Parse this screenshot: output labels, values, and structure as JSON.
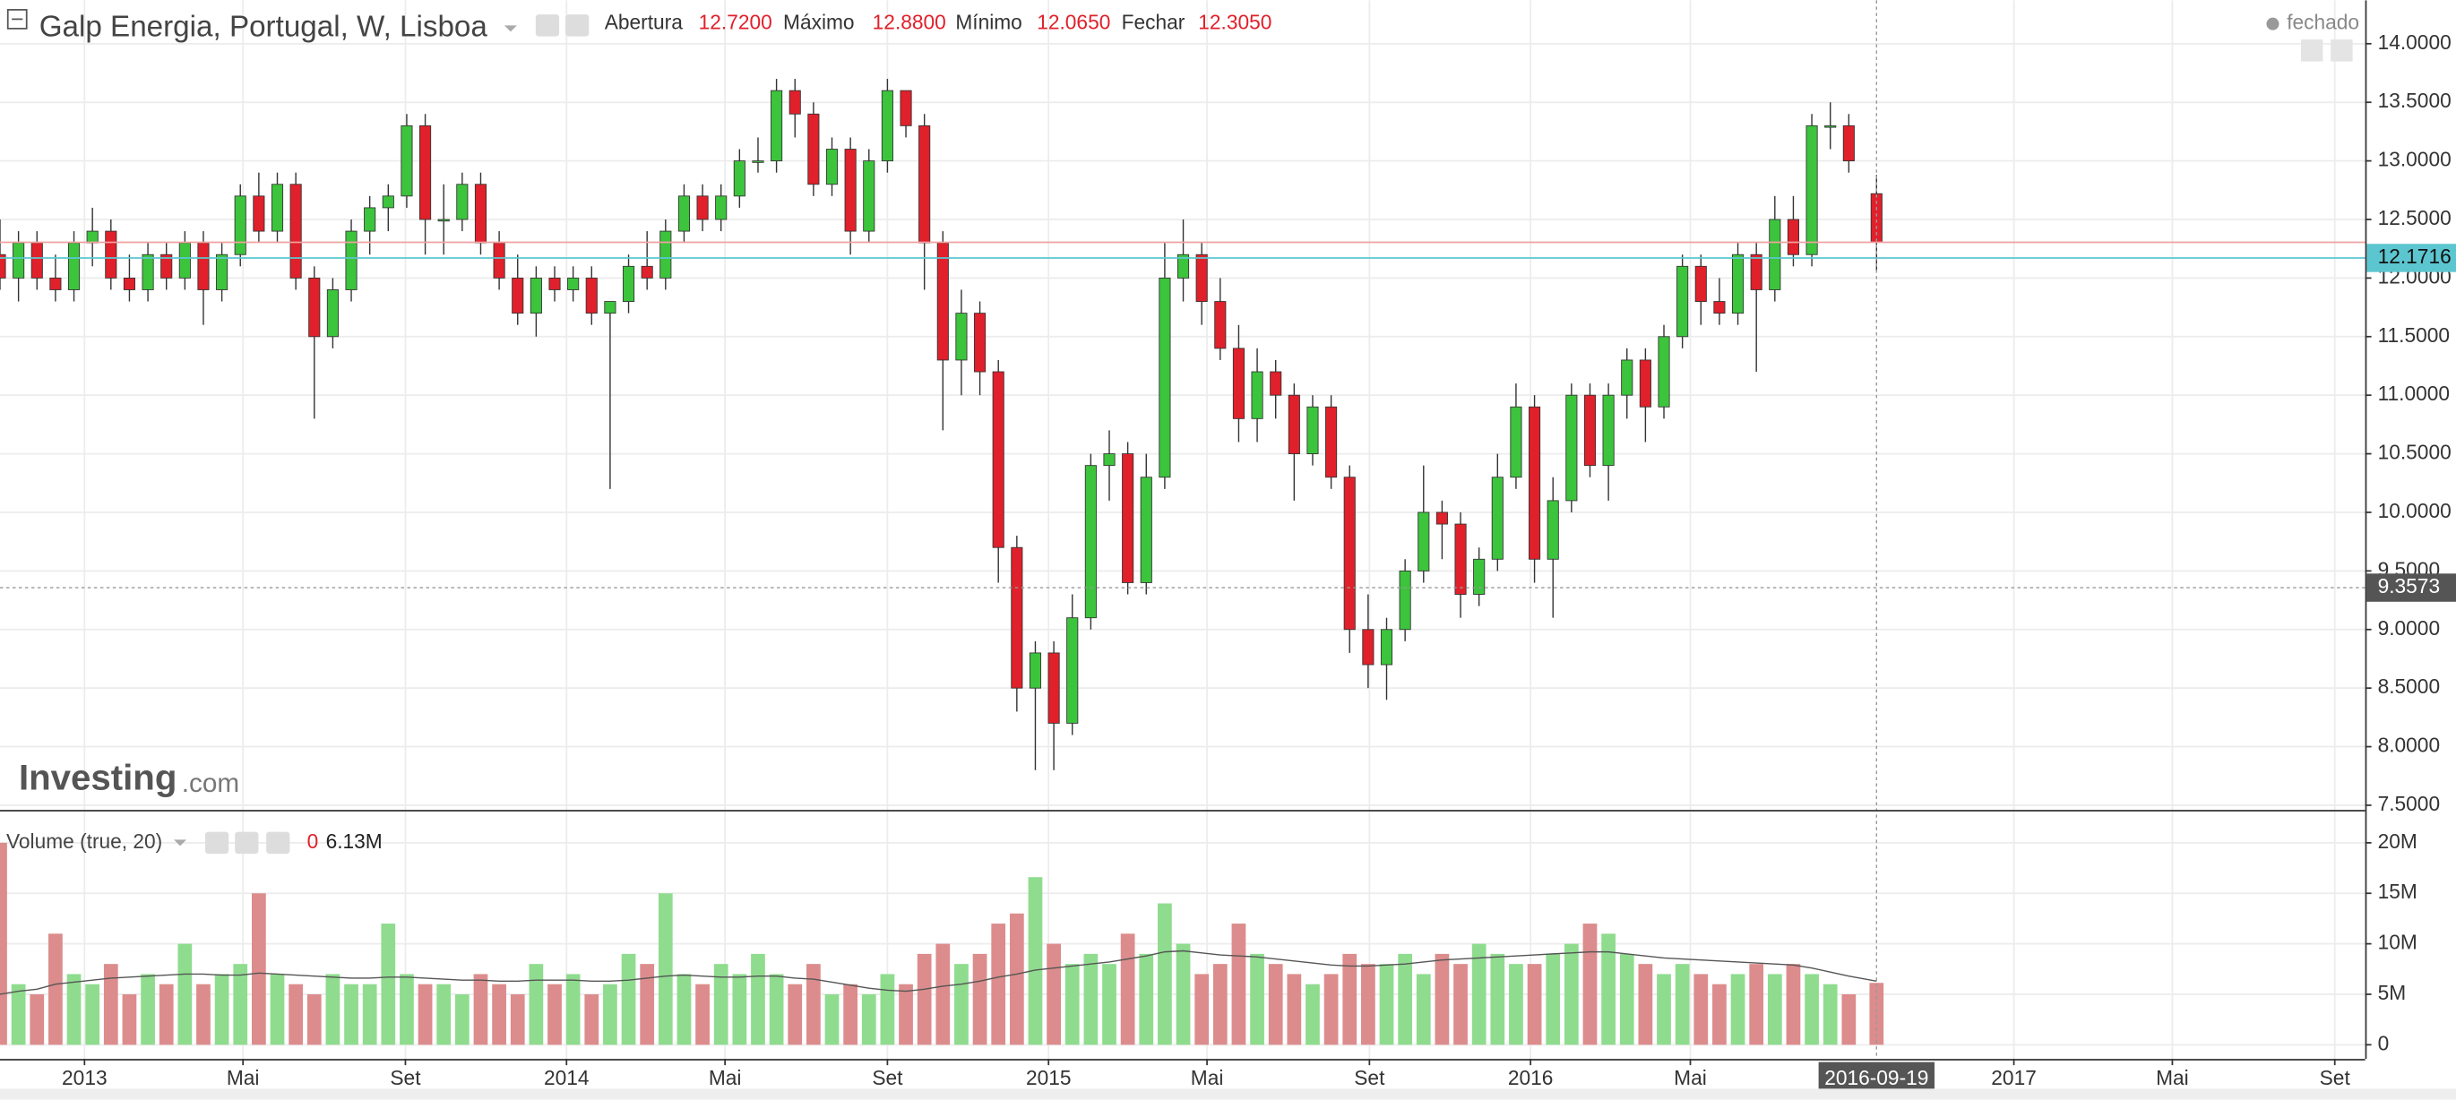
{
  "chart_data": {
    "type": "candlestick",
    "title": "Galp Energia, Portugal, W, Lisboa",
    "quote": [
      {
        "label": "Abertura",
        "value": "12.7200"
      },
      {
        "label": "Máximo",
        "value": "12.8800"
      },
      {
        "label": "Mínimo",
        "value": "12.0650"
      },
      {
        "label": "Fechar",
        "value": "12.3050"
      }
    ],
    "status": "fechado",
    "logo": [
      "Investing",
      ".com"
    ],
    "x": [
      "2012-10-29",
      "2012-11-12",
      "2012-11-26",
      "2012-12-10",
      "2012-12-24",
      "2013-01-07",
      "2013-01-21",
      "2013-02-04",
      "2013-02-18",
      "2013-03-04",
      "2013-03-18",
      "2013-04-01",
      "2013-04-15",
      "2013-04-29",
      "2013-05-13",
      "2013-05-27",
      "2013-06-10",
      "2013-06-24",
      "2013-07-08",
      "2013-07-22",
      "2013-08-05",
      "2013-08-19",
      "2013-09-02",
      "2013-09-16",
      "2013-09-30",
      "2013-10-14",
      "2013-10-28",
      "2013-11-11",
      "2013-11-25",
      "2013-12-09",
      "2013-12-23",
      "2014-01-06",
      "2014-01-20",
      "2014-02-03",
      "2014-02-17",
      "2014-03-03",
      "2014-03-17",
      "2014-03-31",
      "2014-04-14",
      "2014-04-28",
      "2014-05-12",
      "2014-05-26",
      "2014-06-09",
      "2014-06-23",
      "2014-07-07",
      "2014-07-21",
      "2014-08-04",
      "2014-08-18",
      "2014-09-01",
      "2014-09-15",
      "2014-09-29",
      "2014-10-13",
      "2014-10-27",
      "2014-11-10",
      "2014-11-24",
      "2014-12-08",
      "2014-12-22",
      "2015-01-05",
      "2015-01-19",
      "2015-02-02",
      "2015-02-16",
      "2015-03-02",
      "2015-03-16",
      "2015-03-30",
      "2015-04-13",
      "2015-04-27",
      "2015-05-11",
      "2015-05-25",
      "2015-06-08",
      "2015-06-22",
      "2015-07-06",
      "2015-07-20",
      "2015-08-03",
      "2015-08-17",
      "2015-08-31",
      "2015-09-14",
      "2015-09-28",
      "2015-10-12",
      "2015-10-26",
      "2015-11-09",
      "2015-11-23",
      "2015-12-07",
      "2015-12-21",
      "2016-01-04",
      "2016-01-18",
      "2016-02-01",
      "2016-02-15",
      "2016-02-29",
      "2016-03-14",
      "2016-03-28",
      "2016-04-11",
      "2016-04-25",
      "2016-05-09",
      "2016-05-23",
      "2016-06-06",
      "2016-06-20",
      "2016-07-04",
      "2016-07-18",
      "2016-08-01",
      "2016-08-15",
      "2016-08-29",
      "2016-09-19"
    ],
    "open": [
      12.2,
      12.0,
      12.3,
      12.0,
      11.9,
      12.3,
      12.4,
      12.0,
      11.9,
      12.2,
      12.0,
      12.3,
      11.9,
      12.2,
      12.7,
      12.4,
      12.8,
      12.0,
      11.5,
      11.9,
      12.4,
      12.6,
      12.7,
      13.3,
      12.5,
      12.5,
      12.8,
      12.3,
      12.0,
      11.7,
      12.0,
      11.9,
      12.0,
      11.7,
      11.8,
      12.1,
      12.0,
      12.4,
      12.7,
      12.5,
      12.7,
      13.0,
      13.0,
      13.6,
      13.4,
      12.8,
      13.1,
      12.4,
      13.0,
      13.6,
      13.3,
      12.3,
      11.3,
      11.7,
      11.2,
      9.7,
      8.5,
      8.8,
      8.2,
      9.1,
      10.4,
      10.5,
      9.4,
      10.3,
      12.0,
      12.2,
      11.8,
      11.4,
      10.8,
      11.2,
      11.0,
      10.5,
      10.9,
      10.3,
      9.0,
      8.7,
      9.0,
      9.5,
      10.0,
      9.9,
      9.3,
      9.6,
      10.3,
      10.9,
      9.6,
      10.1,
      11.0,
      10.4,
      11.0,
      11.3,
      10.9,
      11.5,
      12.1,
      11.8,
      11.7,
      12.2,
      11.9,
      12.5,
      12.2,
      13.3,
      13.3,
      12.72
    ],
    "high": [
      12.5,
      12.4,
      12.4,
      12.2,
      12.4,
      12.6,
      12.5,
      12.2,
      12.3,
      12.3,
      12.4,
      12.4,
      12.3,
      12.8,
      12.9,
      12.9,
      12.9,
      12.1,
      12.0,
      12.5,
      12.7,
      12.8,
      13.4,
      13.4,
      12.8,
      12.9,
      12.9,
      12.4,
      12.2,
      12.1,
      12.1,
      12.1,
      12.1,
      11.8,
      12.2,
      12.4,
      12.5,
      12.8,
      12.8,
      12.8,
      13.1,
      13.2,
      13.7,
      13.7,
      13.5,
      13.2,
      13.2,
      13.1,
      13.7,
      13.6,
      13.4,
      12.4,
      11.9,
      11.8,
      11.3,
      9.8,
      8.9,
      8.9,
      9.3,
      10.5,
      10.7,
      10.6,
      10.5,
      12.3,
      12.5,
      12.3,
      12.0,
      11.6,
      11.4,
      11.3,
      11.1,
      11.0,
      11.0,
      10.4,
      9.3,
      9.1,
      9.6,
      10.4,
      10.1,
      10.0,
      9.7,
      10.5,
      11.1,
      11.0,
      10.3,
      11.1,
      11.1,
      11.1,
      11.4,
      11.4,
      11.6,
      12.2,
      12.2,
      12.0,
      12.3,
      12.3,
      12.7,
      12.7,
      13.4,
      13.5,
      13.4,
      12.88
    ],
    "low": [
      11.9,
      11.8,
      11.9,
      11.8,
      11.8,
      12.1,
      11.9,
      11.8,
      11.8,
      11.9,
      11.9,
      11.6,
      11.8,
      12.1,
      12.3,
      12.3,
      11.9,
      10.8,
      11.4,
      11.8,
      12.2,
      12.4,
      12.6,
      12.2,
      12.2,
      12.4,
      12.2,
      11.9,
      11.6,
      11.5,
      11.8,
      11.8,
      11.6,
      10.2,
      11.7,
      11.9,
      11.9,
      12.3,
      12.4,
      12.4,
      12.6,
      12.9,
      12.9,
      13.2,
      12.7,
      12.7,
      12.2,
      12.3,
      12.9,
      13.2,
      11.9,
      10.7,
      11.0,
      11.0,
      9.4,
      8.3,
      7.8,
      7.8,
      8.1,
      9.0,
      10.1,
      9.3,
      9.3,
      10.2,
      11.8,
      11.6,
      11.3,
      10.6,
      10.6,
      10.8,
      10.1,
      10.4,
      10.2,
      8.8,
      8.5,
      8.4,
      8.9,
      9.4,
      9.6,
      9.1,
      9.2,
      9.5,
      10.2,
      9.4,
      9.1,
      10.0,
      10.3,
      10.1,
      10.8,
      10.6,
      10.8,
      11.4,
      11.6,
      11.6,
      11.6,
      11.2,
      11.8,
      12.1,
      12.1,
      13.1,
      12.9,
      12.065
    ],
    "close": [
      12.0,
      12.3,
      12.0,
      11.9,
      12.3,
      12.4,
      12.0,
      11.9,
      12.2,
      12.0,
      12.3,
      11.9,
      12.2,
      12.7,
      12.4,
      12.8,
      12.0,
      11.5,
      11.9,
      12.4,
      12.6,
      12.7,
      13.3,
      12.5,
      12.5,
      12.8,
      12.3,
      12.0,
      11.7,
      12.0,
      11.9,
      12.0,
      11.7,
      11.8,
      12.1,
      12.0,
      12.4,
      12.7,
      12.5,
      12.7,
      13.0,
      13.0,
      13.6,
      13.4,
      12.8,
      13.1,
      12.4,
      13.0,
      13.6,
      13.3,
      12.3,
      11.3,
      11.7,
      11.2,
      9.7,
      8.5,
      8.8,
      8.2,
      9.1,
      10.4,
      10.5,
      9.4,
      10.3,
      12.0,
      12.2,
      11.8,
      11.4,
      10.8,
      11.2,
      11.0,
      10.5,
      10.9,
      10.3,
      9.0,
      8.7,
      9.0,
      9.5,
      10.0,
      9.9,
      9.3,
      9.6,
      10.3,
      10.9,
      9.6,
      10.1,
      11.0,
      10.4,
      11.0,
      11.3,
      10.9,
      11.5,
      12.1,
      11.8,
      11.7,
      12.2,
      11.9,
      12.5,
      12.2,
      13.3,
      13.3,
      13.0,
      12.305
    ],
    "up_color": "#3cc43c",
    "down_color": "#e0202a",
    "volume": {
      "name": "Volume (true, 20)",
      "readout": [
        "0",
        "6.13M"
      ],
      "up_color": "#8fdc8f",
      "down_color": "#dc8c8c",
      "ma_color": "#555555",
      "values": [
        20,
        6,
        5,
        11,
        7,
        6,
        8,
        5,
        7,
        6,
        10,
        6,
        7,
        8,
        15,
        7,
        6,
        5,
        7,
        6,
        6,
        12,
        7,
        6,
        6,
        5,
        7,
        6,
        5,
        8,
        6,
        7,
        5,
        6,
        9,
        8,
        15,
        7,
        6,
        8,
        7,
        9,
        7,
        6,
        8,
        5,
        6,
        5,
        7,
        6,
        9,
        10,
        8,
        9,
        12,
        13,
        16.6,
        10,
        8,
        9,
        8,
        11,
        9,
        14,
        10,
        7,
        8,
        12,
        9,
        8,
        7,
        6,
        7,
        9,
        8,
        8,
        9,
        7,
        9,
        8,
        10,
        9,
        8,
        8,
        9,
        10,
        12,
        11,
        9,
        8,
        7,
        8,
        7,
        6,
        7,
        8,
        7,
        8,
        7,
        6,
        5,
        6.13
      ],
      "ma": [
        5.0,
        5.3,
        5.5,
        6.0,
        6.2,
        6.4,
        6.6,
        6.7,
        6.8,
        6.9,
        7.0,
        7.0,
        6.9,
        6.9,
        7.1,
        7.0,
        6.9,
        6.8,
        6.7,
        6.6,
        6.6,
        6.7,
        6.7,
        6.6,
        6.5,
        6.4,
        6.4,
        6.3,
        6.3,
        6.4,
        6.4,
        6.4,
        6.3,
        6.3,
        6.4,
        6.6,
        6.8,
        6.9,
        6.8,
        6.7,
        6.7,
        6.8,
        6.8,
        6.6,
        6.5,
        6.2,
        5.9,
        5.6,
        5.4,
        5.3,
        5.5,
        5.8,
        6.0,
        6.3,
        6.7,
        7.0,
        7.4,
        7.6,
        7.8,
        8.0,
        8.2,
        8.5,
        8.8,
        9.2,
        9.3,
        9.1,
        8.9,
        8.8,
        8.7,
        8.5,
        8.3,
        8.1,
        7.9,
        7.8,
        7.8,
        7.9,
        8.0,
        8.2,
        8.4,
        8.5,
        8.6,
        8.7,
        8.8,
        8.9,
        9.0,
        9.1,
        9.2,
        9.2,
        9.0,
        8.8,
        8.6,
        8.5,
        8.4,
        8.3,
        8.2,
        8.1,
        8.0,
        7.9,
        7.6,
        7.2,
        6.8,
        6.3
      ]
    },
    "xlim": [
      "2012-10-29",
      "2017-09-24"
    ],
    "xticks": [
      {
        "value": "2013-01-01",
        "label": "2013"
      },
      {
        "value": "2013-05-01",
        "label": "Mai"
      },
      {
        "value": "2013-09-01",
        "label": "Set"
      },
      {
        "value": "2014-01-01",
        "label": "2014"
      },
      {
        "value": "2014-05-01",
        "label": "Mai"
      },
      {
        "value": "2014-09-01",
        "label": "Set"
      },
      {
        "value": "2015-01-01",
        "label": "2015"
      },
      {
        "value": "2015-05-01",
        "label": "Mai"
      },
      {
        "value": "2015-09-01",
        "label": "Set"
      },
      {
        "value": "2016-01-01",
        "label": "2016"
      },
      {
        "value": "2016-05-01",
        "label": "Mai"
      },
      {
        "value": "2017-01-01",
        "label": "2017"
      },
      {
        "value": "2017-05-01",
        "label": "Mai"
      },
      {
        "value": "2017-09-01",
        "label": "Set"
      }
    ],
    "ylim": [
      7.46,
      14.37
    ],
    "yticks": [
      {
        "value": 7.5,
        "label": "7.5000"
      },
      {
        "value": 8,
        "label": "8.0000"
      },
      {
        "value": 8.5,
        "label": "8.5000"
      },
      {
        "value": 9,
        "label": "9.0000"
      },
      {
        "value": 9.5,
        "label": "9.5000"
      },
      {
        "value": 10,
        "label": "10.0000"
      },
      {
        "value": 10.5,
        "label": "10.5000"
      },
      {
        "value": 11,
        "label": "11.0000"
      },
      {
        "value": 11.5,
        "label": "11.5000"
      },
      {
        "value": 12,
        "label": "12.0000"
      },
      {
        "value": 12.5,
        "label": "12.5000"
      },
      {
        "value": 13,
        "label": "13.0000"
      },
      {
        "value": 13.5,
        "label": "13.5000"
      },
      {
        "value": 14,
        "label": "14.0000"
      }
    ],
    "y2lim": [
      -1.4,
      23.1
    ],
    "y2ticks": [
      0,
      {
        "value": 5,
        "label": "5M"
      },
      {
        "value": 10,
        "label": "10M"
      },
      {
        "value": 15,
        "label": "15M"
      },
      {
        "value": 20,
        "label": "20M"
      }
    ],
    "grid": true,
    "price_lines": [
      {
        "value": 12.1716,
        "label": "12.1716",
        "color": "#5cc6d0"
      },
      {
        "value": 12.305,
        "color": "#f0a0a0"
      }
    ],
    "crosshair": {
      "y": 9.3573,
      "y_label": "9.3573",
      "x": "2016-09-19"
    }
  }
}
